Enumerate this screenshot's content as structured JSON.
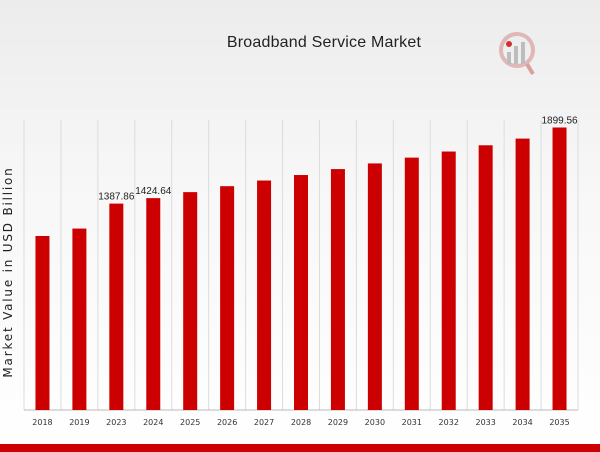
{
  "chart_data": {
    "type": "bar",
    "title": "Broadband Service Market",
    "xlabel": "",
    "ylabel": "Market Value in USD Billion",
    "categories": [
      "2018",
      "2019",
      "2023",
      "2024",
      "2025",
      "2026",
      "2027",
      "2028",
      "2029",
      "2030",
      "2031",
      "2032",
      "2033",
      "2034",
      "2035"
    ],
    "values": [
      1170,
      1220,
      1387.86,
      1424.64,
      1465,
      1505,
      1543,
      1580,
      1620,
      1658,
      1697,
      1738,
      1780,
      1825,
      1899.56
    ],
    "data_labels": {
      "2023": "1387.86",
      "2024": "1424.64",
      "2035": "1899.56"
    },
    "ylim": [
      0,
      1950
    ],
    "grid": "vertical",
    "bar_color": "#cc0000"
  },
  "colors": {
    "accent": "#cc0000",
    "logo_gray": "#bdbdbd",
    "logo_red": "#cc0000"
  },
  "icons": {
    "logo": "market-research-logo-icon"
  }
}
